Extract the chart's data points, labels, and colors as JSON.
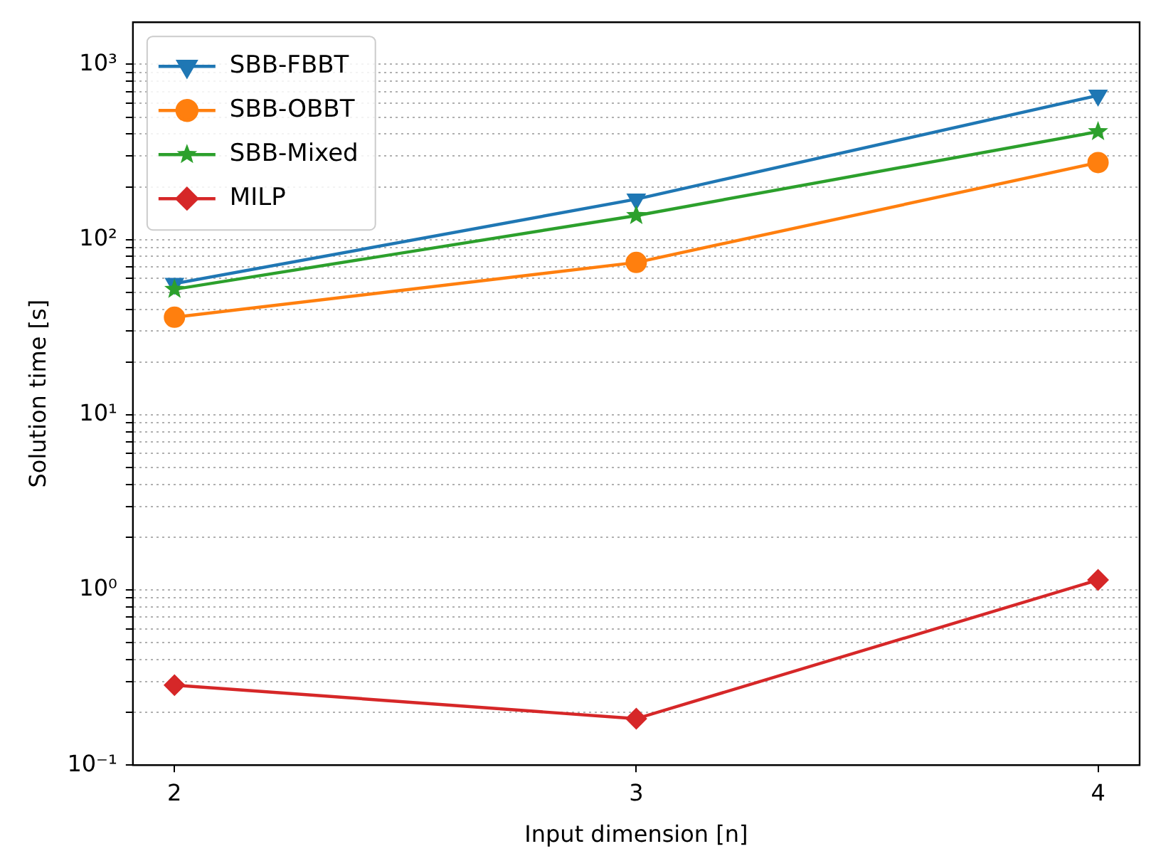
{
  "chart_data": {
    "type": "line",
    "xlabel": "Input dimension [n]",
    "ylabel": "Solution time [s]",
    "x": [
      2,
      3,
      4
    ],
    "series": [
      {
        "name": "SBB-FBBT",
        "color": "#1f77b4",
        "marker": "triangle",
        "values": [
          56,
          170,
          665
        ]
      },
      {
        "name": "SBB-OBBT",
        "color": "#ff7f0e",
        "marker": "circle",
        "values": [
          36,
          74,
          275
        ]
      },
      {
        "name": "SBB-Mixed",
        "color": "#2ca02c",
        "marker": "star",
        "values": [
          52,
          137,
          413
        ]
      },
      {
        "name": "MILP",
        "color": "#d62728",
        "marker": "diamond",
        "values": [
          0.286,
          0.184,
          1.14
        ]
      }
    ],
    "log": "y",
    "xlim": [
      1.91,
      4.09
    ],
    "xticks": [
      2,
      3,
      4
    ],
    "ylim": [
      0.1,
      1740
    ],
    "yticks": [
      {
        "value": 0.1,
        "label": "10⁻¹"
      },
      {
        "value": 0.2,
        "label": null
      },
      {
        "value": 0.3,
        "label": null
      },
      {
        "value": 0.4,
        "label": null
      },
      {
        "value": 0.5,
        "label": null
      },
      {
        "value": 0.6,
        "label": null
      },
      {
        "value": 0.7,
        "label": null
      },
      {
        "value": 0.8,
        "label": null
      },
      {
        "value": 0.9,
        "label": null
      },
      {
        "value": 1,
        "label": "10⁰"
      },
      {
        "value": 2,
        "label": null
      },
      {
        "value": 3,
        "label": null
      },
      {
        "value": 4,
        "label": null
      },
      {
        "value": 5,
        "label": null
      },
      {
        "value": 6,
        "label": null
      },
      {
        "value": 7,
        "label": null
      },
      {
        "value": 8,
        "label": null
      },
      {
        "value": 9,
        "label": null
      },
      {
        "value": 10,
        "label": "10¹"
      },
      {
        "value": 20,
        "label": null
      },
      {
        "value": 30,
        "label": null
      },
      {
        "value": 40,
        "label": null
      },
      {
        "value": 50,
        "label": null
      },
      {
        "value": 60,
        "label": null
      },
      {
        "value": 70,
        "label": null
      },
      {
        "value": 80,
        "label": null
      },
      {
        "value": 90,
        "label": null
      },
      {
        "value": 100,
        "label": "10²"
      },
      {
        "value": 200,
        "label": null
      },
      {
        "value": 300,
        "label": null
      },
      {
        "value": 400,
        "label": null
      },
      {
        "value": 500,
        "label": null
      },
      {
        "value": 600,
        "label": null
      },
      {
        "value": 700,
        "label": null
      },
      {
        "value": 800,
        "label": null
      },
      {
        "value": 900,
        "label": null
      },
      {
        "value": 1000,
        "label": "10³"
      }
    ],
    "grid": "y",
    "legend": "top left"
  }
}
